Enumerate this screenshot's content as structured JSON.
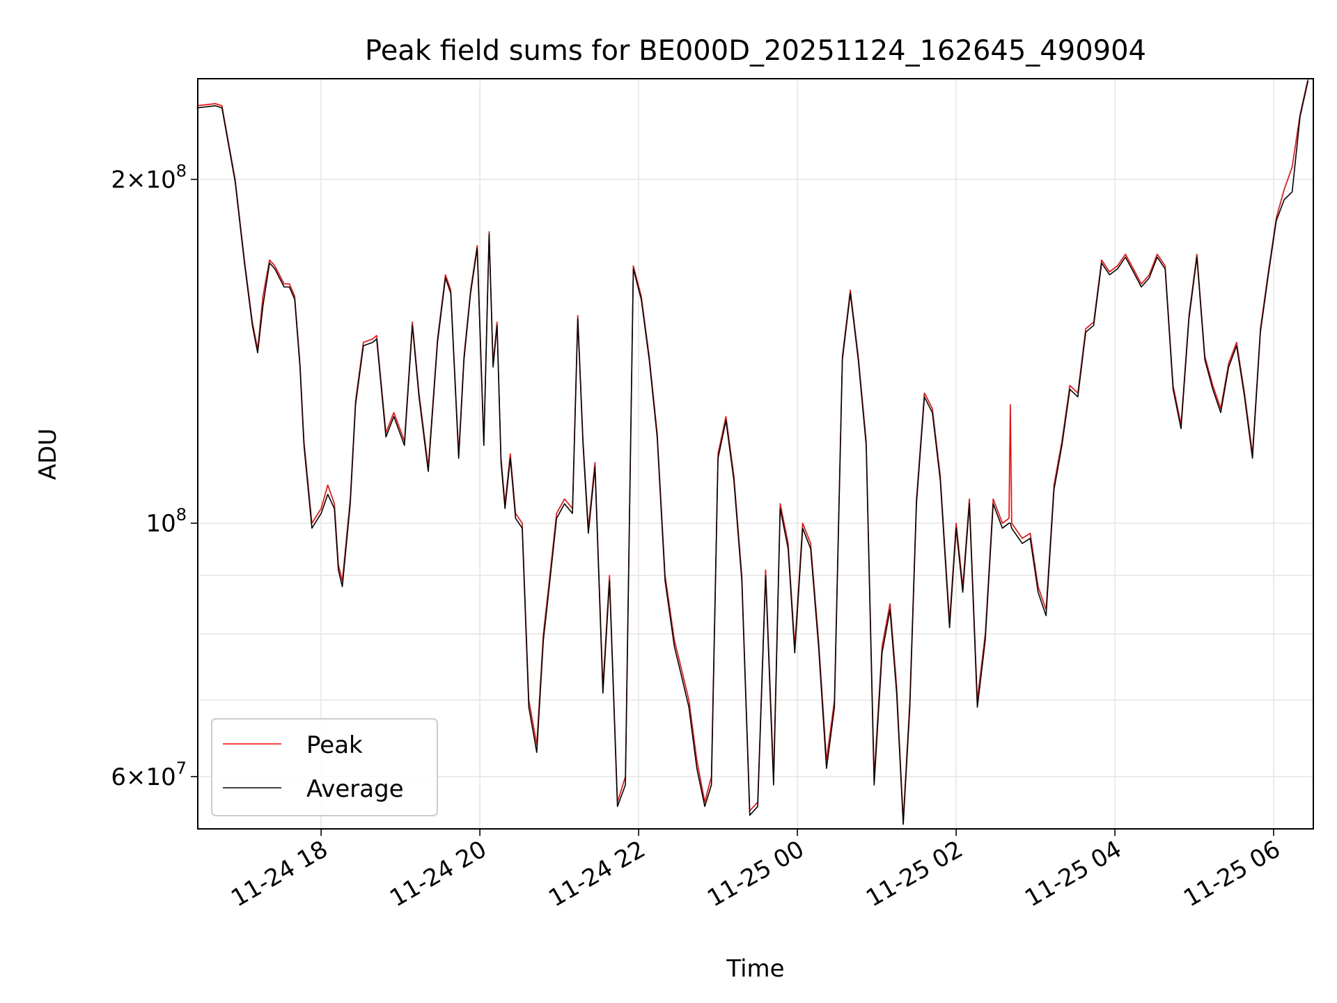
{
  "chart_data": {
    "type": "line",
    "title": "Peak field sums for BE000D_20251124_162645_490904",
    "xlabel": "Time",
    "ylabel": "ADU",
    "y_scale": "log",
    "ylim": [
      54000000,
      245000000
    ],
    "xlim": [
      "2025-11-24T16:26:45",
      "2025-11-25T06:30:00"
    ],
    "grid": true,
    "legend_position": "lower-left",
    "x_ticks": [
      {
        "value": "2025-11-24T18:00:00",
        "label": "11-24 18"
      },
      {
        "value": "2025-11-24T20:00:00",
        "label": "11-24 20"
      },
      {
        "value": "2025-11-24T22:00:00",
        "label": "11-24 22"
      },
      {
        "value": "2025-11-25T00:00:00",
        "label": "11-25 00"
      },
      {
        "value": "2025-11-25T02:00:00",
        "label": "11-25 02"
      },
      {
        "value": "2025-11-25T04:00:00",
        "label": "11-25 04"
      },
      {
        "value": "2025-11-25T06:00:00",
        "label": "11-25 06"
      }
    ],
    "y_major_ticks": [
      {
        "value": 60000000,
        "mantissa": "6",
        "exponent": "7"
      },
      {
        "value": 100000000,
        "mantissa": "",
        "exponent": "8"
      },
      {
        "value": 200000000,
        "mantissa": "2",
        "exponent": "8"
      }
    ],
    "y_minor_grid": [
      70000000,
      80000000,
      90000000
    ],
    "series": [
      {
        "name": "Peak",
        "color": "#ff0000",
        "x": [
          "2025-11-24T16:26",
          "2025-11-24T16:40",
          "2025-11-24T16:45",
          "2025-11-24T16:55",
          "2025-11-24T17:02",
          "2025-11-24T17:08",
          "2025-11-24T17:12",
          "2025-11-24T17:16",
          "2025-11-24T17:21",
          "2025-11-24T17:25",
          "2025-11-24T17:32",
          "2025-11-24T17:36",
          "2025-11-24T17:40",
          "2025-11-24T17:44",
          "2025-11-24T17:47",
          "2025-11-24T17:53",
          "2025-11-24T18:00",
          "2025-11-24T18:05",
          "2025-11-24T18:10",
          "2025-11-24T18:13",
          "2025-11-24T18:16",
          "2025-11-24T18:22",
          "2025-11-24T18:26",
          "2025-11-24T18:32",
          "2025-11-24T18:39",
          "2025-11-24T18:42",
          "2025-11-24T18:49",
          "2025-11-24T18:55",
          "2025-11-24T19:03",
          "2025-11-24T19:09",
          "2025-11-24T19:14",
          "2025-11-24T19:21",
          "2025-11-24T19:28",
          "2025-11-24T19:34",
          "2025-11-24T19:38",
          "2025-11-24T19:44",
          "2025-11-24T19:48",
          "2025-11-24T19:53",
          "2025-11-24T19:58",
          "2025-11-24T20:03",
          "2025-11-24T20:07",
          "2025-11-24T20:10",
          "2025-11-24T20:13",
          "2025-11-24T20:16",
          "2025-11-24T20:19",
          "2025-11-24T20:23",
          "2025-11-24T20:27",
          "2025-11-24T20:32",
          "2025-11-24T20:37",
          "2025-11-24T20:43",
          "2025-11-24T20:48",
          "2025-11-24T20:52",
          "2025-11-24T20:58",
          "2025-11-24T21:04",
          "2025-11-24T21:10",
          "2025-11-24T21:14",
          "2025-11-24T21:18",
          "2025-11-24T21:22",
          "2025-11-24T21:27",
          "2025-11-24T21:33",
          "2025-11-24T21:38",
          "2025-11-24T21:44",
          "2025-11-24T21:50",
          "2025-11-24T21:56",
          "2025-11-24T22:02",
          "2025-11-24T22:08",
          "2025-11-24T22:14",
          "2025-11-24T22:20",
          "2025-11-24T22:27",
          "2025-11-24T22:33",
          "2025-11-24T22:38",
          "2025-11-24T22:44",
          "2025-11-24T22:50",
          "2025-11-24T22:55",
          "2025-11-24T23:00",
          "2025-11-24T23:06",
          "2025-11-24T23:12",
          "2025-11-24T23:18",
          "2025-11-24T23:24",
          "2025-11-24T23:30",
          "2025-11-24T23:36",
          "2025-11-24T23:42",
          "2025-11-24T23:47",
          "2025-11-24T23:53",
          "2025-11-24T23:58",
          "2025-11-25T00:04",
          "2025-11-25T00:10",
          "2025-11-25T00:16",
          "2025-11-25T00:22",
          "2025-11-25T00:28",
          "2025-11-25T00:34",
          "2025-11-25T00:40",
          "2025-11-25T00:46",
          "2025-11-25T00:52",
          "2025-11-25T00:58",
          "2025-11-25T01:04",
          "2025-11-25T01:10",
          "2025-11-25T01:15",
          "2025-11-25T01:20",
          "2025-11-25T01:25",
          "2025-11-25T01:30",
          "2025-11-25T01:36",
          "2025-11-25T01:42",
          "2025-11-25T01:48",
          "2025-11-25T01:55",
          "2025-11-25T02:00",
          "2025-11-25T02:05",
          "2025-11-25T02:10",
          "2025-11-25T02:16",
          "2025-11-25T02:22",
          "2025-11-25T02:28",
          "2025-11-25T02:35",
          "2025-11-25T02:40",
          "2025-11-25T02:41",
          "2025-11-25T02:42",
          "2025-11-25T02:50",
          "2025-11-25T02:56",
          "2025-11-25T03:02",
          "2025-11-25T03:08",
          "2025-11-25T03:14",
          "2025-11-25T03:20",
          "2025-11-25T03:26",
          "2025-11-25T03:32",
          "2025-11-25T03:38",
          "2025-11-25T03:44",
          "2025-11-25T03:50",
          "2025-11-25T03:56",
          "2025-11-25T04:02",
          "2025-11-25T04:08",
          "2025-11-25T04:14",
          "2025-11-25T04:20",
          "2025-11-25T04:26",
          "2025-11-25T04:32",
          "2025-11-25T04:38",
          "2025-11-25T04:44",
          "2025-11-25T04:50",
          "2025-11-25T04:56",
          "2025-11-25T05:02",
          "2025-11-25T05:08",
          "2025-11-25T05:14",
          "2025-11-25T05:20",
          "2025-11-25T05:26",
          "2025-11-25T05:32",
          "2025-11-25T05:38",
          "2025-11-25T05:44",
          "2025-11-25T05:50",
          "2025-11-25T05:56",
          "2025-11-25T06:02",
          "2025-11-25T06:08",
          "2025-11-25T06:14",
          "2025-11-25T06:20",
          "2025-11-25T06:26"
        ],
        "values": [
          232000000,
          233000000,
          232000000,
          200000000,
          170000000,
          150000000,
          142000000,
          158000000,
          170000000,
          168000000,
          162000000,
          162000000,
          158000000,
          138000000,
          118000000,
          100000000,
          103000000,
          108000000,
          104000000,
          92000000,
          89000000,
          105000000,
          128000000,
          144000000,
          145000000,
          146000000,
          120000000,
          125000000,
          118000000,
          150000000,
          130000000,
          112000000,
          145000000,
          165000000,
          160000000,
          115000000,
          140000000,
          160000000,
          175000000,
          118000000,
          180000000,
          138000000,
          150000000,
          114000000,
          104000000,
          115000000,
          102000000,
          100000000,
          70000000,
          64000000,
          80000000,
          88000000,
          102000000,
          105000000,
          103000000,
          152000000,
          118000000,
          99000000,
          113000000,
          72000000,
          90000000,
          57000000,
          60000000,
          168000000,
          158000000,
          140000000,
          120000000,
          90000000,
          79000000,
          74000000,
          70000000,
          62000000,
          57000000,
          60000000,
          115000000,
          124000000,
          110000000,
          90000000,
          56000000,
          57000000,
          91000000,
          60000000,
          104000000,
          96000000,
          78000000,
          100000000,
          96000000,
          79000000,
          62000000,
          70000000,
          140000000,
          160000000,
          140000000,
          118000000,
          60000000,
          78000000,
          85000000,
          72000000,
          55000000,
          70000000,
          105000000,
          130000000,
          126000000,
          110000000,
          82000000,
          100000000,
          88000000,
          105000000,
          70000000,
          80000000,
          105000000,
          100000000,
          101000000,
          127000000,
          100000000,
          97000000,
          98000000,
          88000000,
          84000000,
          108000000,
          118000000,
          132000000,
          130000000,
          148000000,
          150000000,
          170000000,
          166000000,
          168000000,
          172000000,
          167000000,
          162000000,
          165000000,
          172000000,
          168000000,
          132000000,
          122000000,
          152000000,
          172000000,
          140000000,
          132000000,
          126000000,
          138000000,
          144000000,
          130000000,
          115000000,
          148000000,
          166000000,
          185000000,
          196000000,
          205000000,
          228000000,
          245000000
        ]
      },
      {
        "name": "Average",
        "color": "#000000",
        "x": [
          "2025-11-24T16:26",
          "2025-11-24T16:40",
          "2025-11-24T16:45",
          "2025-11-24T16:55",
          "2025-11-24T17:02",
          "2025-11-24T17:08",
          "2025-11-24T17:12",
          "2025-11-24T17:16",
          "2025-11-24T17:21",
          "2025-11-24T17:25",
          "2025-11-24T17:32",
          "2025-11-24T17:36",
          "2025-11-24T17:40",
          "2025-11-24T17:44",
          "2025-11-24T17:47",
          "2025-11-24T17:53",
          "2025-11-24T18:00",
          "2025-11-24T18:05",
          "2025-11-24T18:10",
          "2025-11-24T18:13",
          "2025-11-24T18:16",
          "2025-11-24T18:22",
          "2025-11-24T18:26",
          "2025-11-24T18:32",
          "2025-11-24T18:39",
          "2025-11-24T18:42",
          "2025-11-24T18:49",
          "2025-11-24T18:55",
          "2025-11-24T19:03",
          "2025-11-24T19:09",
          "2025-11-24T19:14",
          "2025-11-24T19:21",
          "2025-11-24T19:28",
          "2025-11-24T19:34",
          "2025-11-24T19:38",
          "2025-11-24T19:44",
          "2025-11-24T19:48",
          "2025-11-24T19:53",
          "2025-11-24T19:58",
          "2025-11-24T20:03",
          "2025-11-24T20:07",
          "2025-11-24T20:10",
          "2025-11-24T20:13",
          "2025-11-24T20:16",
          "2025-11-24T20:19",
          "2025-11-24T20:23",
          "2025-11-24T20:27",
          "2025-11-24T20:32",
          "2025-11-24T20:37",
          "2025-11-24T20:43",
          "2025-11-24T20:48",
          "2025-11-24T20:52",
          "2025-11-24T20:58",
          "2025-11-24T21:04",
          "2025-11-24T21:10",
          "2025-11-24T21:14",
          "2025-11-24T21:18",
          "2025-11-24T21:22",
          "2025-11-24T21:27",
          "2025-11-24T21:33",
          "2025-11-24T21:38",
          "2025-11-24T21:44",
          "2025-11-24T21:50",
          "2025-11-24T21:56",
          "2025-11-24T22:02",
          "2025-11-24T22:08",
          "2025-11-24T22:14",
          "2025-11-24T22:20",
          "2025-11-24T22:27",
          "2025-11-24T22:33",
          "2025-11-24T22:38",
          "2025-11-24T22:44",
          "2025-11-24T22:50",
          "2025-11-24T22:55",
          "2025-11-24T23:00",
          "2025-11-24T23:06",
          "2025-11-24T23:12",
          "2025-11-24T23:18",
          "2025-11-24T23:24",
          "2025-11-24T23:30",
          "2025-11-24T23:36",
          "2025-11-24T23:42",
          "2025-11-24T23:47",
          "2025-11-24T23:53",
          "2025-11-24T23:58",
          "2025-11-25T00:04",
          "2025-11-25T00:10",
          "2025-11-25T00:16",
          "2025-11-25T00:22",
          "2025-11-25T00:28",
          "2025-11-25T00:34",
          "2025-11-25T00:40",
          "2025-11-25T00:46",
          "2025-11-25T00:52",
          "2025-11-25T00:58",
          "2025-11-25T01:04",
          "2025-11-25T01:10",
          "2025-11-25T01:15",
          "2025-11-25T01:20",
          "2025-11-25T01:25",
          "2025-11-25T01:30",
          "2025-11-25T01:36",
          "2025-11-25T01:42",
          "2025-11-25T01:48",
          "2025-11-25T01:55",
          "2025-11-25T02:00",
          "2025-11-25T02:05",
          "2025-11-25T02:10",
          "2025-11-25T02:16",
          "2025-11-25T02:22",
          "2025-11-25T02:28",
          "2025-11-25T02:35",
          "2025-11-25T02:40",
          "2025-11-25T02:41",
          "2025-11-25T02:42",
          "2025-11-25T02:50",
          "2025-11-25T02:56",
          "2025-11-25T03:02",
          "2025-11-25T03:08",
          "2025-11-25T03:14",
          "2025-11-25T03:20",
          "2025-11-25T03:26",
          "2025-11-25T03:32",
          "2025-11-25T03:38",
          "2025-11-25T03:44",
          "2025-11-25T03:50",
          "2025-11-25T03:56",
          "2025-11-25T04:02",
          "2025-11-25T04:08",
          "2025-11-25T04:14",
          "2025-11-25T04:20",
          "2025-11-25T04:26",
          "2025-11-25T04:32",
          "2025-11-25T04:38",
          "2025-11-25T04:44",
          "2025-11-25T04:50",
          "2025-11-25T04:56",
          "2025-11-25T05:02",
          "2025-11-25T05:08",
          "2025-11-25T05:14",
          "2025-11-25T05:20",
          "2025-11-25T05:26",
          "2025-11-25T05:32",
          "2025-11-25T05:38",
          "2025-11-25T05:44",
          "2025-11-25T05:50",
          "2025-11-25T05:56",
          "2025-11-25T06:02",
          "2025-11-25T06:08",
          "2025-11-25T06:14",
          "2025-11-25T06:20",
          "2025-11-25T06:26"
        ],
        "values": [
          231000000,
          232000000,
          231000000,
          199000000,
          169000000,
          149000000,
          141000000,
          155000000,
          169000000,
          167000000,
          161000000,
          161000000,
          157000000,
          137000000,
          117000000,
          99000000,
          102000000,
          106000000,
          103000000,
          91000000,
          88000000,
          104000000,
          127000000,
          143000000,
          144000000,
          145000000,
          119000000,
          124000000,
          117000000,
          149000000,
          129000000,
          111000000,
          144000000,
          164000000,
          159000000,
          114000000,
          139000000,
          159000000,
          174000000,
          117000000,
          179000000,
          137000000,
          149000000,
          113000000,
          103000000,
          114000000,
          101000000,
          99000000,
          69000000,
          63000000,
          79000000,
          87000000,
          101000000,
          104000000,
          102000000,
          151000000,
          117000000,
          98000000,
          112000000,
          71000000,
          89000000,
          56500000,
          59000000,
          167000000,
          157000000,
          139000000,
          119000000,
          89000000,
          78000000,
          73000000,
          69000000,
          61000000,
          56500000,
          59000000,
          114000000,
          123000000,
          109000000,
          89000000,
          55500000,
          56500000,
          90000000,
          59000000,
          103000000,
          95000000,
          77000000,
          99000000,
          95000000,
          78000000,
          61000000,
          69000000,
          139000000,
          159000000,
          139000000,
          117000000,
          59000000,
          77000000,
          84000000,
          71000000,
          54500000,
          69000000,
          104000000,
          129000000,
          125000000,
          109000000,
          81000000,
          99000000,
          87000000,
          104000000,
          69000000,
          79000000,
          104000000,
          99000000,
          100000000,
          100000000,
          99000000,
          96000000,
          97000000,
          87000000,
          83000000,
          107000000,
          117000000,
          131000000,
          129000000,
          147000000,
          149000000,
          169000000,
          165000000,
          167000000,
          171000000,
          166000000,
          161000000,
          164000000,
          171000000,
          167000000,
          131000000,
          121000000,
          151000000,
          171000000,
          139000000,
          131000000,
          125000000,
          137000000,
          143000000,
          129000000,
          114000000,
          147000000,
          165000000,
          184000000,
          192000000,
          195000000,
          227000000,
          244000000
        ]
      }
    ]
  }
}
